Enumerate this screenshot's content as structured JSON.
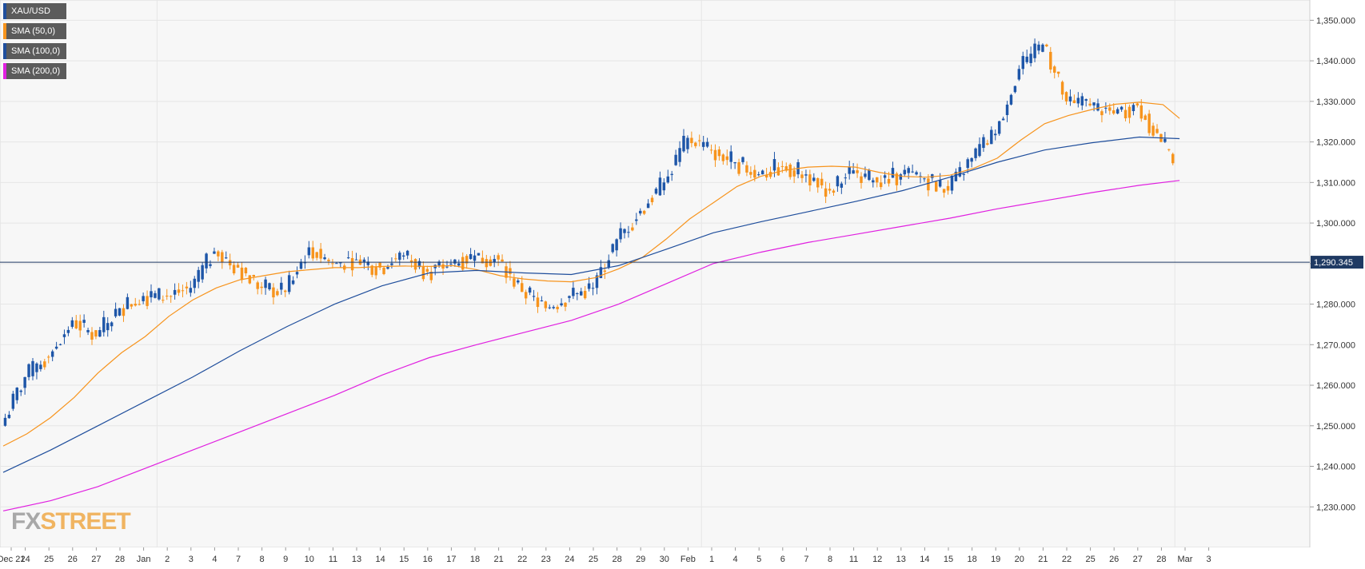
{
  "legend": [
    {
      "label": "XAU/USD",
      "color": "#1f4e9c"
    },
    {
      "label": "SMA (50,0)",
      "color": "#f7941d"
    },
    {
      "label": "SMA (100,0)",
      "color": "#1f4e9c"
    },
    {
      "label": "SMA (200,0)",
      "color": "#e020e0"
    }
  ],
  "watermark": {
    "part1": "FX",
    "part2": "STREET"
  },
  "colors": {
    "up": "#1e56a8",
    "down": "#f7941d",
    "sma50": "#f7941d",
    "sma100": "#1f4e9c",
    "sma200": "#e020e0",
    "price_line": "#1f3a63",
    "price_label_bg": "#1f3a63",
    "grid": "#e6e6e6",
    "plot_bg": "#f7f7f7"
  },
  "chart_data": {
    "type": "candlestick",
    "symbol": "XAU/USD",
    "last_price": "1,290.345",
    "ylim": [
      1220,
      1355
    ],
    "y_ticks": [
      "1,230.000",
      "1,240.000",
      "1,250.000",
      "1,260.000",
      "1,270.000",
      "1,280.000",
      "1,290.000",
      "1,300.000",
      "1,310.000",
      "1,320.000",
      "1,330.000",
      "1,340.000",
      "1,350.000"
    ],
    "x_ticks": [
      "Dec 21",
      "24",
      "25",
      "26",
      "27",
      "28",
      "Jan",
      "2",
      "3",
      "4",
      "7",
      "8",
      "9",
      "10",
      "11",
      "13",
      "14",
      "15",
      "16",
      "17",
      "18",
      "21",
      "22",
      "23",
      "24",
      "25",
      "28",
      "29",
      "30",
      "Feb",
      "1",
      "4",
      "5",
      "6",
      "7",
      "8",
      "11",
      "12",
      "13",
      "14",
      "15",
      "18",
      "19",
      "20",
      "21",
      "22",
      "25",
      "26",
      "27",
      "28",
      "Mar",
      "3"
    ],
    "day_close": [
      1262,
      1267,
      1276,
      1272,
      1279,
      1282,
      1282,
      1284,
      1293,
      1289,
      1284,
      1283,
      1294,
      1290,
      1291,
      1289,
      1292,
      1288,
      1290,
      1292,
      1291,
      1283,
      1279,
      1282,
      1284,
      1296,
      1303,
      1310,
      1321,
      1318,
      1315,
      1312,
      1314,
      1312,
      1308,
      1313,
      1310,
      1312,
      1311,
      1308,
      1316,
      1322,
      1338,
      1344,
      1330,
      1329,
      1327,
      1329,
      1320,
      1313,
      1290.345
    ],
    "series": [
      {
        "name": "SMA (50,0)",
        "x": [
          0,
          1,
          2,
          3,
          4,
          5,
          6,
          7,
          8,
          9,
          10,
          11,
          12,
          13,
          14,
          15,
          16,
          17,
          18,
          19,
          20,
          21,
          22,
          23,
          24,
          25,
          26,
          27,
          28,
          29,
          30,
          31,
          32,
          33,
          34,
          35,
          36,
          37,
          38,
          39,
          40,
          41,
          42,
          43,
          44,
          45,
          46,
          47,
          48,
          49,
          49.7
        ],
        "values": [
          1245,
          1248,
          1252,
          1257,
          1263,
          1268,
          1272,
          1277,
          1281,
          1284,
          1286,
          1287,
          1288,
          1288.5,
          1289,
          1289,
          1289.3,
          1289.4,
          1289.3,
          1289.5,
          1288.5,
          1287,
          1286.2,
          1285.7,
          1285.5,
          1286.5,
          1288.7,
          1291.5,
          1296,
          1301,
          1305,
          1309,
          1311.5,
          1313,
          1313.8,
          1314,
          1313.8,
          1312.5,
          1311.5,
          1311.3,
          1311.8,
          1313.5,
          1316,
          1320.5,
          1324.5,
          1326.5,
          1328,
          1329.3,
          1329.8,
          1329.2,
          1325.8
        ]
      },
      {
        "name": "SMA (100,0)",
        "x": [
          0,
          2,
          4,
          6,
          8,
          10,
          12,
          14,
          16,
          18,
          20,
          22,
          24,
          26,
          28,
          30,
          32,
          34,
          36,
          38,
          40,
          42,
          44,
          46,
          48,
          49.7
        ],
        "values": [
          1238.5,
          1244,
          1250,
          1256,
          1262,
          1268.5,
          1274.5,
          1280,
          1284.5,
          1287.7,
          1288.3,
          1287.7,
          1287.3,
          1289.5,
          1293.5,
          1297.6,
          1300.3,
          1302.8,
          1305.3,
          1308,
          1311.3,
          1315,
          1318,
          1319.8,
          1321.2,
          1320.8
        ]
      },
      {
        "name": "SMA (200,0)",
        "x": [
          0,
          2,
          4,
          6,
          8,
          10,
          12,
          14,
          16,
          18,
          20,
          22,
          24,
          26,
          28,
          30,
          32,
          34,
          36,
          38,
          40,
          42,
          44,
          46,
          48,
          49.7
        ],
        "values": [
          1229,
          1231.5,
          1235,
          1239.5,
          1244,
          1248.5,
          1253,
          1257.5,
          1262.5,
          1266.8,
          1270,
          1273,
          1276,
          1280,
          1285,
          1290,
          1292.8,
          1295.2,
          1297.2,
          1299.2,
          1301.2,
          1303.5,
          1305.5,
          1307.5,
          1309.3,
          1310.5
        ]
      }
    ]
  }
}
